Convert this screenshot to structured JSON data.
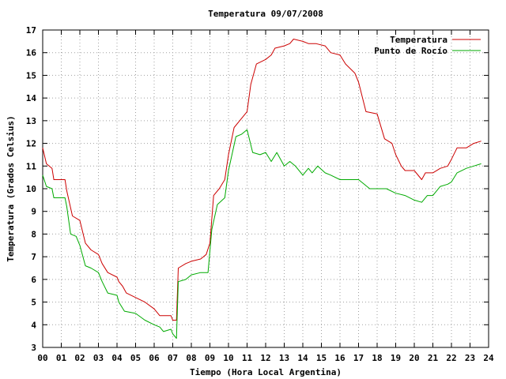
{
  "chart_data": {
    "type": "line",
    "title": "Temperatura 09/07/2008",
    "xlabel": "Tiempo (Hora Local Argentina)",
    "ylabel": "Temperatura (Grados Celsius)",
    "xlim": [
      0,
      24
    ],
    "ylim": [
      3,
      17
    ],
    "grid": true,
    "legend_position": "top-right",
    "x_ticks": [
      {
        "value": 0,
        "label": "00"
      },
      {
        "value": 1,
        "label": "01"
      },
      {
        "value": 2,
        "label": "02"
      },
      {
        "value": 3,
        "label": "03"
      },
      {
        "value": 4,
        "label": "04"
      },
      {
        "value": 5,
        "label": "05"
      },
      {
        "value": 6,
        "label": "06"
      },
      {
        "value": 7,
        "label": "07"
      },
      {
        "value": 8,
        "label": "08"
      },
      {
        "value": 9,
        "label": "09"
      },
      {
        "value": 10,
        "label": "10"
      },
      {
        "value": 11,
        "label": "11"
      },
      {
        "value": 12,
        "label": "12"
      },
      {
        "value": 13,
        "label": "13"
      },
      {
        "value": 14,
        "label": "14"
      },
      {
        "value": 15,
        "label": "15"
      },
      {
        "value": 16,
        "label": "16"
      },
      {
        "value": 17,
        "label": "17"
      },
      {
        "value": 18,
        "label": "18"
      },
      {
        "value": 19,
        "label": "19"
      },
      {
        "value": 20,
        "label": "20"
      },
      {
        "value": 21,
        "label": "21"
      },
      {
        "value": 22,
        "label": "22"
      },
      {
        "value": 23,
        "label": "23"
      },
      {
        "value": 24,
        "label": "24"
      }
    ],
    "y_ticks": [
      3,
      4,
      5,
      6,
      7,
      8,
      9,
      10,
      11,
      12,
      13,
      14,
      15,
      16,
      17
    ],
    "series": [
      {
        "name": "Temperatura",
        "color": "#cc0000",
        "points": [
          [
            0.0,
            11.8
          ],
          [
            0.2,
            11.1
          ],
          [
            0.5,
            10.9
          ],
          [
            0.6,
            10.4
          ],
          [
            1.0,
            10.4
          ],
          [
            1.2,
            10.4
          ],
          [
            1.3,
            9.9
          ],
          [
            1.6,
            8.8
          ],
          [
            2.0,
            8.6
          ],
          [
            2.3,
            7.6
          ],
          [
            2.6,
            7.3
          ],
          [
            3.0,
            7.1
          ],
          [
            3.2,
            6.7
          ],
          [
            3.5,
            6.3
          ],
          [
            4.0,
            6.1
          ],
          [
            4.1,
            5.9
          ],
          [
            4.3,
            5.7
          ],
          [
            4.5,
            5.4
          ],
          [
            5.0,
            5.2
          ],
          [
            5.5,
            5.0
          ],
          [
            6.0,
            4.7
          ],
          [
            6.3,
            4.4
          ],
          [
            6.9,
            4.4
          ],
          [
            7.0,
            4.2
          ],
          [
            7.2,
            4.2
          ],
          [
            7.3,
            6.5
          ],
          [
            7.7,
            6.7
          ],
          [
            8.0,
            6.8
          ],
          [
            8.5,
            6.9
          ],
          [
            8.8,
            7.1
          ],
          [
            9.0,
            7.6
          ],
          [
            9.2,
            9.7
          ],
          [
            9.5,
            10.0
          ],
          [
            9.8,
            10.4
          ],
          [
            10.0,
            11.5
          ],
          [
            10.3,
            12.7
          ],
          [
            10.6,
            13.0
          ],
          [
            11.0,
            13.4
          ],
          [
            11.2,
            14.6
          ],
          [
            11.5,
            15.5
          ],
          [
            12.0,
            15.7
          ],
          [
            12.3,
            15.9
          ],
          [
            12.5,
            16.2
          ],
          [
            13.0,
            16.3
          ],
          [
            13.3,
            16.4
          ],
          [
            13.5,
            16.6
          ],
          [
            14.0,
            16.5
          ],
          [
            14.3,
            16.4
          ],
          [
            14.7,
            16.4
          ],
          [
            15.2,
            16.3
          ],
          [
            15.5,
            16.0
          ],
          [
            16.0,
            15.9
          ],
          [
            16.3,
            15.5
          ],
          [
            16.8,
            15.1
          ],
          [
            17.0,
            14.7
          ],
          [
            17.4,
            13.4
          ],
          [
            18.0,
            13.3
          ],
          [
            18.4,
            12.2
          ],
          [
            18.8,
            12.0
          ],
          [
            19.0,
            11.5
          ],
          [
            19.3,
            11.0
          ],
          [
            19.5,
            10.8
          ],
          [
            20.0,
            10.8
          ],
          [
            20.4,
            10.4
          ],
          [
            20.6,
            10.7
          ],
          [
            21.0,
            10.7
          ],
          [
            21.4,
            10.9
          ],
          [
            21.8,
            11.0
          ],
          [
            22.0,
            11.3
          ],
          [
            22.3,
            11.8
          ],
          [
            22.8,
            11.8
          ],
          [
            23.2,
            12.0
          ],
          [
            23.6,
            12.1
          ]
        ]
      },
      {
        "name": "Punto de Rocío",
        "color": "#00aa00",
        "points": [
          [
            0.0,
            10.6
          ],
          [
            0.2,
            10.1
          ],
          [
            0.5,
            10.0
          ],
          [
            0.6,
            9.6
          ],
          [
            1.0,
            9.6
          ],
          [
            1.2,
            9.6
          ],
          [
            1.3,
            9.2
          ],
          [
            1.5,
            8.0
          ],
          [
            1.8,
            7.9
          ],
          [
            2.0,
            7.5
          ],
          [
            2.3,
            6.6
          ],
          [
            2.6,
            6.5
          ],
          [
            3.0,
            6.3
          ],
          [
            3.2,
            5.9
          ],
          [
            3.5,
            5.4
          ],
          [
            4.0,
            5.3
          ],
          [
            4.1,
            5.0
          ],
          [
            4.4,
            4.6
          ],
          [
            5.0,
            4.5
          ],
          [
            5.5,
            4.2
          ],
          [
            6.0,
            4.0
          ],
          [
            6.3,
            3.9
          ],
          [
            6.5,
            3.7
          ],
          [
            6.9,
            3.8
          ],
          [
            7.0,
            3.6
          ],
          [
            7.2,
            3.4
          ],
          [
            7.3,
            5.9
          ],
          [
            7.7,
            6.0
          ],
          [
            8.0,
            6.2
          ],
          [
            8.5,
            6.3
          ],
          [
            8.9,
            6.3
          ],
          [
            9.1,
            8.2
          ],
          [
            9.4,
            9.3
          ],
          [
            9.8,
            9.6
          ],
          [
            10.0,
            10.8
          ],
          [
            10.4,
            12.3
          ],
          [
            10.7,
            12.4
          ],
          [
            11.0,
            12.6
          ],
          [
            11.3,
            11.6
          ],
          [
            11.7,
            11.5
          ],
          [
            12.0,
            11.6
          ],
          [
            12.3,
            11.2
          ],
          [
            12.6,
            11.6
          ],
          [
            13.0,
            11.0
          ],
          [
            13.3,
            11.2
          ],
          [
            13.6,
            11.0
          ],
          [
            14.0,
            10.6
          ],
          [
            14.3,
            10.9
          ],
          [
            14.5,
            10.7
          ],
          [
            14.8,
            11.0
          ],
          [
            15.2,
            10.7
          ],
          [
            15.5,
            10.6
          ],
          [
            16.0,
            10.4
          ],
          [
            16.5,
            10.4
          ],
          [
            17.0,
            10.4
          ],
          [
            17.3,
            10.2
          ],
          [
            17.6,
            10.0
          ],
          [
            18.0,
            10.0
          ],
          [
            18.5,
            10.0
          ],
          [
            19.0,
            9.8
          ],
          [
            19.5,
            9.7
          ],
          [
            20.0,
            9.5
          ],
          [
            20.4,
            9.4
          ],
          [
            20.7,
            9.7
          ],
          [
            21.0,
            9.7
          ],
          [
            21.4,
            10.1
          ],
          [
            21.8,
            10.2
          ],
          [
            22.0,
            10.3
          ],
          [
            22.3,
            10.7
          ],
          [
            22.8,
            10.9
          ],
          [
            23.2,
            11.0
          ],
          [
            23.6,
            11.1
          ]
        ]
      }
    ]
  }
}
